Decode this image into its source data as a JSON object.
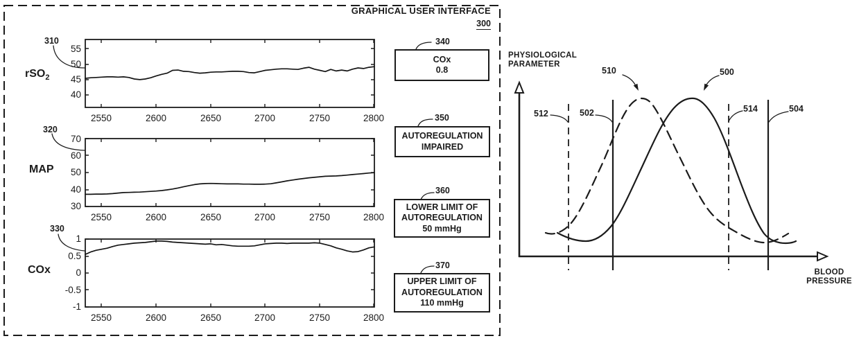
{
  "figure": {
    "gui": {
      "title": "GRAPHICAL USER INTERFACE",
      "ref": "300"
    },
    "charts": [
      {
        "ref": "310",
        "label": "rSO",
        "label_sub": "2"
      },
      {
        "ref": "320",
        "label": "MAP"
      },
      {
        "ref": "330",
        "label": "COx"
      }
    ],
    "boxes": [
      {
        "ref": "340",
        "lines": [
          "COx",
          "0.8"
        ]
      },
      {
        "ref": "350",
        "lines": [
          "AUTOREGULATION",
          "IMPAIRED"
        ]
      },
      {
        "ref": "360",
        "lines": [
          "LOWER LIMIT OF",
          "AUTOREGULATION",
          "50 mmHg"
        ]
      },
      {
        "ref": "370",
        "lines": [
          "UPPER LIMIT OF",
          "AUTOREGULATION",
          "110 mmHg"
        ]
      }
    ],
    "diagram": {
      "y_axis_label": [
        "PHYSIOLOGICAL",
        "PARAMETER"
      ],
      "x_axis_label": [
        "BLOOD",
        "PRESSURE"
      ],
      "ref_dashed_curve": "510",
      "ref_solid_curve": "500",
      "ref_dashed_line_left": "512",
      "ref_solid_line_left": "502",
      "ref_dashed_line_right": "514",
      "ref_solid_line_right": "504"
    }
  },
  "chart_data": [
    {
      "type": "line",
      "name": "rSO2 trend",
      "ref": "310",
      "ylabel": "rSO2",
      "xlim": [
        2535,
        2800
      ],
      "ylim": [
        36,
        58
      ],
      "x_ticks": [
        2550,
        2600,
        2650,
        2700,
        2750,
        2800
      ],
      "x_tick_labels": [
        "2550",
        "2600",
        "2650",
        "2700",
        "2750",
        "2800"
      ],
      "y_ticks": [
        40,
        45,
        50,
        55
      ],
      "y_tick_labels": [
        "55",
        "50",
        "45",
        "40"
      ],
      "x": [
        2535,
        2540,
        2545,
        2550,
        2555,
        2560,
        2565,
        2570,
        2575,
        2580,
        2585,
        2590,
        2595,
        2600,
        2605,
        2610,
        2615,
        2620,
        2625,
        2630,
        2635,
        2640,
        2645,
        2650,
        2655,
        2660,
        2665,
        2670,
        2675,
        2680,
        2685,
        2690,
        2695,
        2700,
        2705,
        2710,
        2715,
        2720,
        2725,
        2730,
        2735,
        2740,
        2745,
        2750,
        2755,
        2760,
        2765,
        2770,
        2775,
        2780,
        2785,
        2790,
        2795,
        2800
      ],
      "y": [
        45.4,
        45.6,
        45.7,
        45.8,
        45.9,
        45.9,
        45.8,
        45.9,
        45.7,
        45.2,
        45.0,
        45.2,
        45.6,
        46.2,
        46.7,
        47.1,
        48.0,
        48.1,
        47.7,
        47.6,
        47.3,
        47.1,
        47.2,
        47.4,
        47.5,
        47.5,
        47.6,
        47.7,
        47.7,
        47.6,
        47.3,
        47.2,
        47.6,
        48.0,
        48.2,
        48.4,
        48.5,
        48.5,
        48.4,
        48.3,
        48.7,
        49.0,
        48.4,
        48.0,
        47.6,
        48.3,
        47.8,
        48.1,
        47.8,
        48.4,
        48.8,
        48.6,
        49.0,
        49.2
      ]
    },
    {
      "type": "line",
      "name": "MAP trend",
      "ref": "320",
      "ylabel": "MAP",
      "xlim": [
        2535,
        2800
      ],
      "ylim": [
        30,
        70
      ],
      "x_ticks": [
        2550,
        2600,
        2650,
        2700,
        2750,
        2800
      ],
      "x_tick_labels": [
        "2550",
        "2600",
        "2650",
        "2700",
        "2750",
        "2800"
      ],
      "y_ticks": [
        30,
        40,
        50,
        60,
        70
      ],
      "y_tick_labels": [
        "70",
        "60",
        "50",
        "40",
        "30"
      ],
      "x": [
        2535,
        2540,
        2545,
        2550,
        2555,
        2560,
        2565,
        2570,
        2575,
        2580,
        2585,
        2590,
        2595,
        2600,
        2605,
        2610,
        2615,
        2620,
        2625,
        2630,
        2635,
        2640,
        2645,
        2650,
        2655,
        2660,
        2665,
        2670,
        2675,
        2680,
        2685,
        2690,
        2695,
        2700,
        2705,
        2710,
        2715,
        2720,
        2725,
        2730,
        2735,
        2740,
        2745,
        2750,
        2755,
        2760,
        2765,
        2770,
        2775,
        2780,
        2785,
        2790,
        2795,
        2800
      ],
      "y": [
        37.2,
        37.2,
        37.3,
        37.3,
        37.4,
        37.6,
        37.9,
        38.2,
        38.3,
        38.4,
        38.5,
        38.7,
        38.9,
        39.1,
        39.4,
        39.8,
        40.3,
        40.9,
        41.6,
        42.3,
        42.9,
        43.3,
        43.5,
        43.6,
        43.5,
        43.4,
        43.3,
        43.3,
        43.3,
        43.2,
        43.2,
        43.1,
        43.1,
        43.2,
        43.4,
        43.9,
        44.5,
        45.1,
        45.6,
        46.1,
        46.5,
        46.9,
        47.2,
        47.5,
        47.8,
        47.9,
        48.0,
        48.2,
        48.5,
        48.8,
        49.1,
        49.4,
        49.7,
        49.9
      ]
    },
    {
      "type": "line",
      "name": "COx trend",
      "ref": "330",
      "ylabel": "COx",
      "xlim": [
        2535,
        2800
      ],
      "ylim": [
        -1,
        1
      ],
      "x_ticks": [
        2550,
        2600,
        2650,
        2700,
        2750,
        2800
      ],
      "x_tick_labels": [
        "2550",
        "2600",
        "2650",
        "2700",
        "2750",
        "2800"
      ],
      "y_ticks": [
        -1,
        -0.5,
        0,
        0.5,
        1
      ],
      "y_tick_labels": [
        "1",
        "0.5",
        "0",
        "-0.5",
        "-1"
      ],
      "x": [
        2535,
        2540,
        2545,
        2550,
        2555,
        2560,
        2565,
        2570,
        2575,
        2580,
        2585,
        2590,
        2595,
        2600,
        2605,
        2610,
        2615,
        2620,
        2625,
        2630,
        2635,
        2640,
        2645,
        2650,
        2655,
        2660,
        2665,
        2670,
        2675,
        2680,
        2685,
        2690,
        2695,
        2700,
        2705,
        2710,
        2715,
        2720,
        2725,
        2730,
        2735,
        2740,
        2745,
        2750,
        2755,
        2760,
        2765,
        2770,
        2775,
        2780,
        2785,
        2790,
        2795,
        2800
      ],
      "y": [
        0.55,
        0.62,
        0.67,
        0.7,
        0.73,
        0.78,
        0.82,
        0.84,
        0.86,
        0.88,
        0.89,
        0.9,
        0.92,
        0.94,
        0.94,
        0.93,
        0.91,
        0.9,
        0.89,
        0.88,
        0.87,
        0.86,
        0.85,
        0.86,
        0.83,
        0.84,
        0.82,
        0.8,
        0.79,
        0.79,
        0.79,
        0.8,
        0.83,
        0.86,
        0.87,
        0.88,
        0.88,
        0.87,
        0.88,
        0.88,
        0.88,
        0.88,
        0.89,
        0.88,
        0.84,
        0.8,
        0.74,
        0.7,
        0.65,
        0.62,
        0.63,
        0.68,
        0.74,
        0.77
      ]
    },
    {
      "type": "line",
      "name": "autoregulation curves vs blood pressure",
      "xlabel": "BLOOD PRESSURE",
      "ylabel": "PHYSIOLOGICAL PARAMETER",
      "series": [
        {
          "name": "510",
          "style": "dashed",
          "description": "bell curve peaking left of center, between vertical lines 502 and 514"
        },
        {
          "name": "500",
          "style": "solid",
          "description": "bell curve peaking right of center, between vertical lines 502 and 514"
        }
      ],
      "vertical_lines": [
        {
          "ref": "512",
          "style": "dashed",
          "position": "left outer"
        },
        {
          "ref": "502",
          "style": "solid",
          "position": "left inner"
        },
        {
          "ref": "514",
          "style": "dashed",
          "position": "right inner"
        },
        {
          "ref": "504",
          "style": "solid",
          "position": "right outer"
        }
      ]
    }
  ]
}
